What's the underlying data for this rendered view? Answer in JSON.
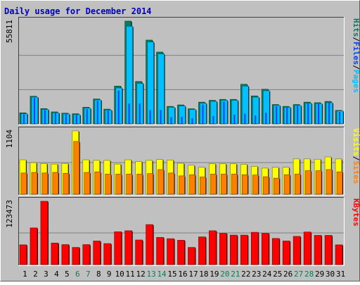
{
  "colors": {
    "background": "#C0C0C0",
    "plot_bg": "#C0C0C0",
    "title": "#0000C0",
    "hits": "#00805C",
    "files": "#0040FF",
    "pages": "#00C0FF",
    "visits": "#FFFF00",
    "sites": "#FF8000",
    "kbytes": "#FF0000",
    "weekend_label": "#00805C",
    "weekday_label": "#000000"
  },
  "chart_data": {
    "type": "bar",
    "title": "Daily usage for December 2014",
    "days": [
      "1",
      "2",
      "3",
      "4",
      "5",
      "6",
      "7",
      "8",
      "9",
      "10",
      "11",
      "12",
      "13",
      "14",
      "15",
      "16",
      "17",
      "18",
      "19",
      "20",
      "21",
      "22",
      "23",
      "24",
      "25",
      "26",
      "27",
      "28",
      "29",
      "30",
      "31"
    ],
    "weekend_days": [
      "6",
      "7",
      "13",
      "14",
      "20",
      "21",
      "27",
      "28"
    ],
    "panels": [
      {
        "id": "hits-files-pages",
        "ymax_label": "55811",
        "ymax": 55811,
        "legend": [
          {
            "text": "Pages",
            "color": "#00C0FF"
          },
          {
            "text": "Files",
            "color": "#0040FF"
          },
          {
            "text": "Hits",
            "color": "#00805C"
          }
        ],
        "series": [
          {
            "name": "Hits",
            "values": [
              6000,
              15000,
              8300,
              6500,
              5800,
              5500,
              9000,
              13500,
              8000,
              20500,
              55811,
              23000,
              45500,
              39000,
              9500,
              10300,
              8200,
              11800,
              12800,
              13300,
              13300,
              21500,
              15200,
              18800,
              10500,
              9500,
              10500,
              11800,
              11500,
              12200,
              7300
            ]
          },
          {
            "name": "Files",
            "values": [
              5200,
              14000,
              7500,
              5800,
              5200,
              4800,
              8000,
              12500,
              7200,
              18000,
              11000,
              11000,
              7500,
              7500,
              3600,
              3800,
              3000,
              10500,
              4200,
              12000,
              5000,
              5500,
              4500,
              6000,
              9500,
              8800,
              9700,
              11000,
              10800,
              11700,
              6500
            ]
          },
          {
            "name": "Pages",
            "values": [
              5500,
              14500,
              7800,
              6000,
              5400,
              5000,
              8500,
              13000,
              7500,
              19500,
              53000,
              22000,
              44500,
              38000,
              9000,
              9700,
              7800,
              11200,
              12200,
              12800,
              12800,
              20500,
              14500,
              18000,
              10000,
              9000,
              10000,
              11200,
              11000,
              11500,
              7000
            ]
          }
        ]
      },
      {
        "id": "visits-sites",
        "ymax_label": "1104",
        "ymax": 1104,
        "legend": [
          {
            "text": "Sites",
            "color": "#FF8000"
          },
          {
            "text": "Visits",
            "color": "#FFFF00"
          }
        ],
        "series": [
          {
            "name": "Visits",
            "values": [
              600,
              550,
              535,
              525,
              535,
              1104,
              600,
              590,
              590,
              525,
              600,
              570,
              590,
              605,
              595,
              540,
              505,
              470,
              530,
              530,
              530,
              520,
              485,
              455,
              470,
              470,
              615,
              615,
              610,
              650,
              615
            ]
          },
          {
            "name": "Sites",
            "values": [
              370,
              380,
              370,
              380,
              365,
              920,
              380,
              390,
              350,
              350,
              350,
              350,
              360,
              430,
              370,
              320,
              340,
              300,
              350,
              350,
              350,
              340,
              335,
              305,
              280,
              340,
              350,
              410,
              410,
              430,
              390
            ]
          }
        ]
      },
      {
        "id": "kbytes",
        "ymax_label": "123473",
        "ymax": 123473,
        "legend": [
          {
            "text": "KBytes",
            "color": "#FF0000"
          }
        ],
        "series": [
          {
            "name": "KBytes",
            "values": [
              38500,
              71500,
              123473,
              42000,
              39000,
              33500,
              39000,
              46000,
              41000,
              64000,
              66000,
              48000,
              78000,
              53000,
              50500,
              47500,
              33500,
              54000,
              66000,
              61000,
              57500,
              57500,
              63000,
              61000,
              51000,
              46000,
              55000,
              63500,
              57000,
              57000,
              38500
            ]
          }
        ]
      }
    ]
  }
}
